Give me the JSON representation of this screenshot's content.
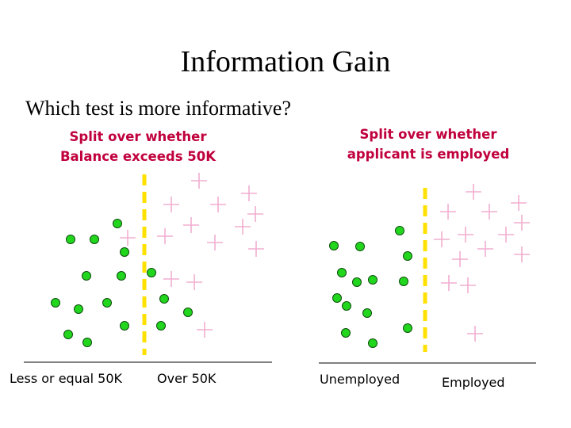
{
  "title": "Information Gain",
  "question": "Which test is more informative?",
  "colors": {
    "dot_fill": "#22d61e",
    "dot_stroke": "#0b4d0b",
    "plus": "#f2aed0",
    "split_line": "#ffe100",
    "subtitle": "#c0003c"
  },
  "panels": {
    "left": {
      "subtitle_line1": "Split over whether",
      "subtitle_line2": "Balance exceeds 50K",
      "label_left": "Less or equal 50K",
      "label_right": "Over 50K"
    },
    "right": {
      "subtitle_line1": "Split over whether",
      "subtitle_line2": "applicant is employed",
      "label_left": "Unemployed",
      "label_right": "Employed"
    }
  }
}
